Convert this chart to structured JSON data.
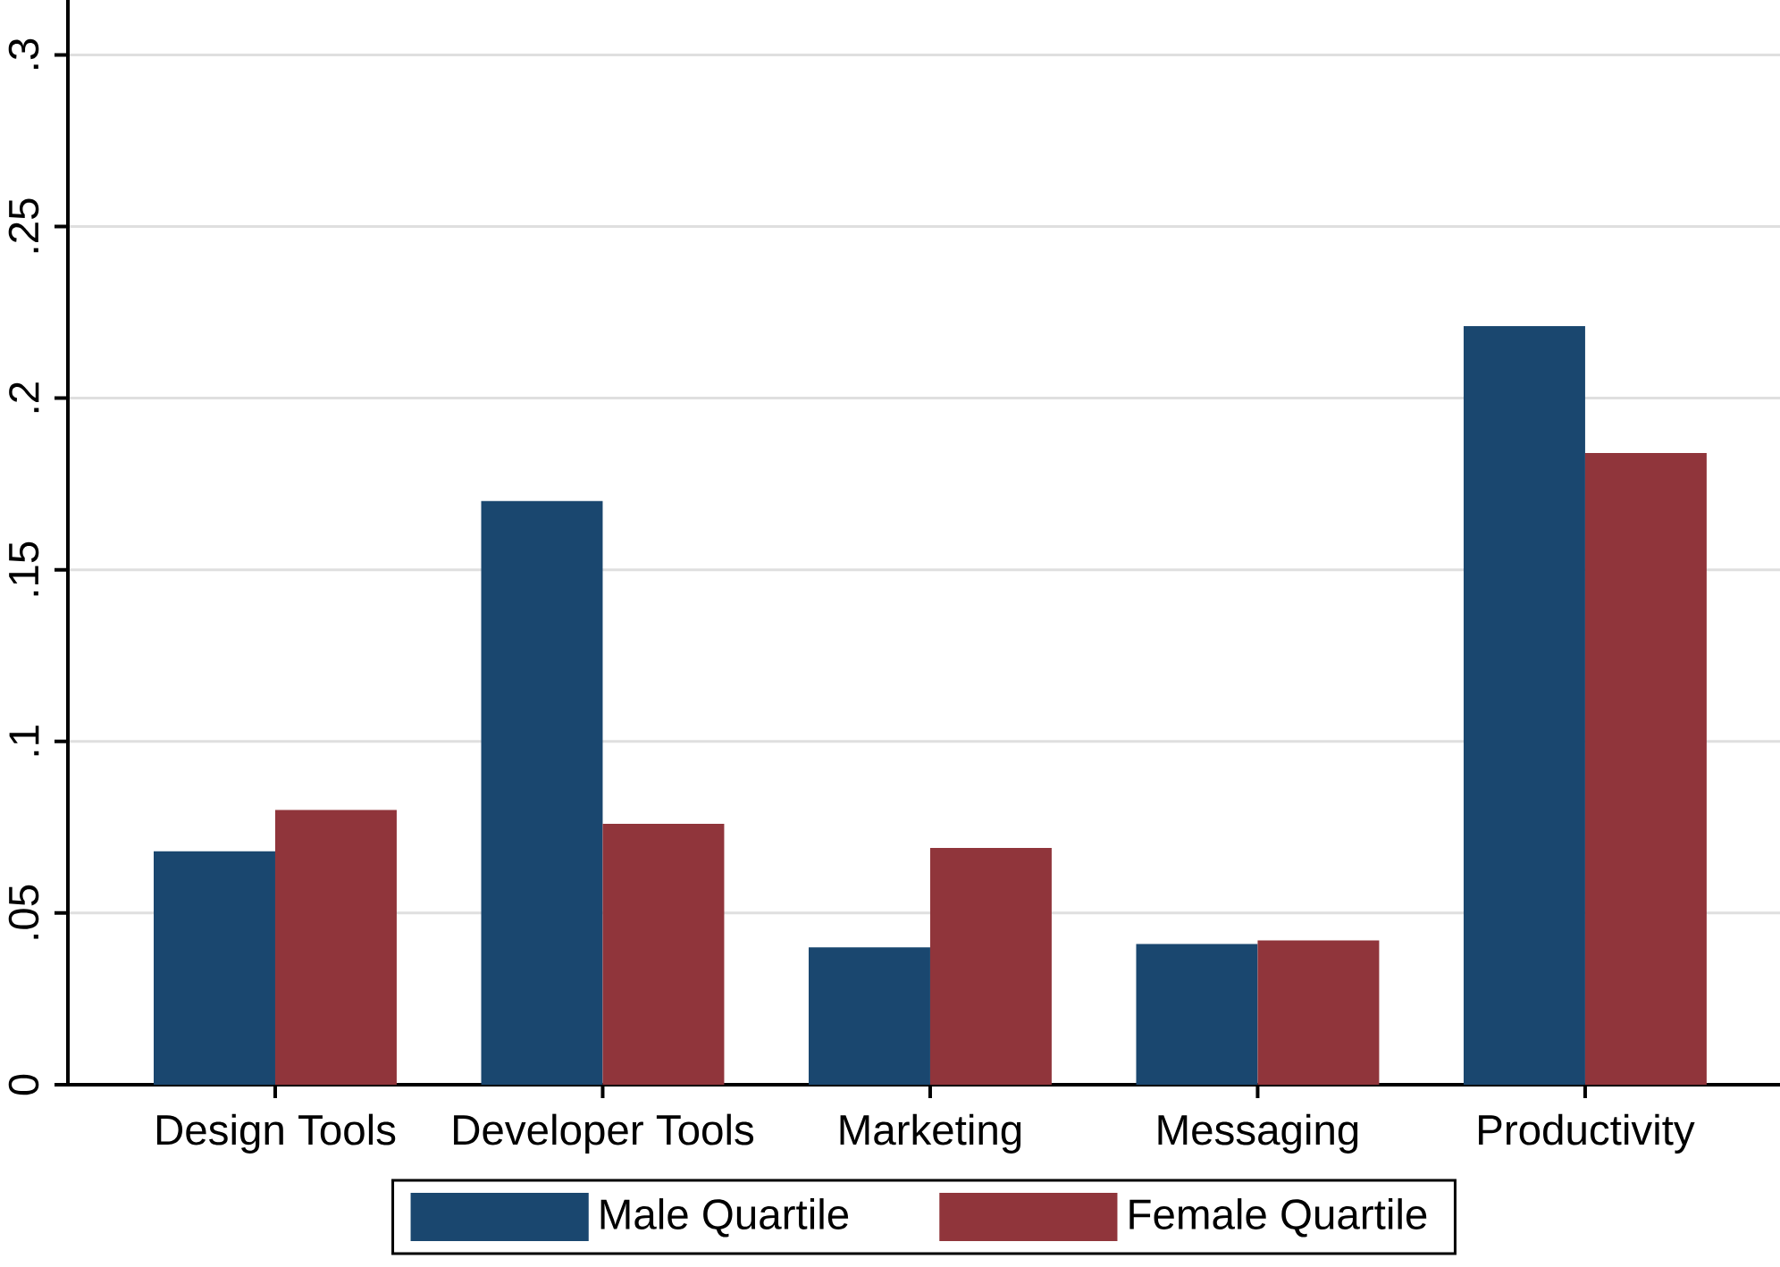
{
  "chart_data": {
    "type": "bar",
    "categories": [
      "Design Tools",
      "Developer Tools",
      "Marketing",
      "Messaging",
      "Productivity"
    ],
    "series": [
      {
        "name": "Male Quartile",
        "color": "#1a476f",
        "values": [
          0.068,
          0.17,
          0.04,
          0.041,
          0.221
        ]
      },
      {
        "name": "Female Quartile",
        "color": "#90353b",
        "values": [
          0.08,
          0.076,
          0.069,
          0.042,
          0.184
        ]
      }
    ],
    "ylim": [
      0,
      0.316
    ],
    "yticks": [
      {
        "value": 0,
        "label": "0"
      },
      {
        "value": 0.05,
        "label": ".05"
      },
      {
        "value": 0.1,
        "label": ".1"
      },
      {
        "value": 0.15,
        "label": ".15"
      },
      {
        "value": 0.2,
        "label": ".2"
      },
      {
        "value": 0.25,
        "label": ".25"
      },
      {
        "value": 0.3,
        "label": ".3"
      }
    ],
    "grid": "y",
    "legend": "bottom"
  }
}
